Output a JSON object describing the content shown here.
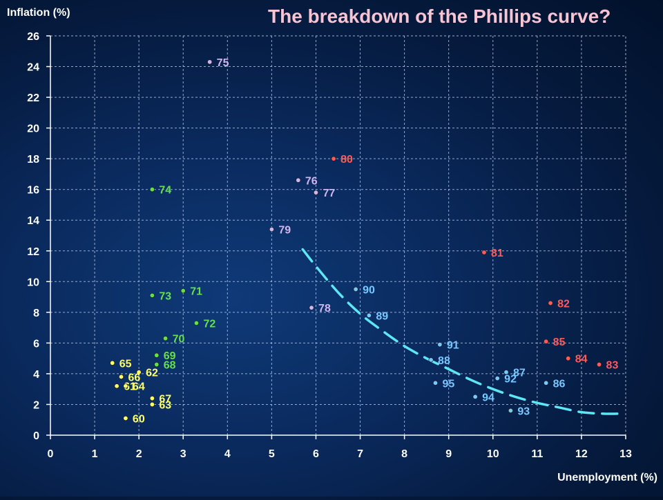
{
  "chart_data": {
    "type": "scatter",
    "title": "The breakdown of the Phillips curve?",
    "xlabel": "Unemployment (%)",
    "ylabel": "Inflation (%)",
    "xlim": [
      0,
      13
    ],
    "ylim": [
      0,
      26
    ],
    "xticks": [
      0,
      1,
      2,
      3,
      4,
      5,
      6,
      7,
      8,
      9,
      10,
      11,
      12,
      13
    ],
    "yticks": [
      0,
      2,
      4,
      6,
      8,
      10,
      12,
      14,
      16,
      18,
      20,
      22,
      24,
      26
    ],
    "grid": true,
    "colors": {
      "title": "#f6c4d2",
      "grid": "#c9d6ea",
      "curve": "#5fe6f5"
    },
    "series": [
      {
        "color": "#ffff66",
        "points": [
          {
            "label": "60",
            "x": 1.7,
            "y": 1.1
          },
          {
            "label": "61",
            "x": 1.5,
            "y": 3.2
          },
          {
            "label": "62",
            "x": 2.0,
            "y": 4.1
          },
          {
            "label": "63",
            "x": 2.3,
            "y": 2.0
          },
          {
            "label": "64",
            "x": 1.7,
            "y": 3.2
          },
          {
            "label": "65",
            "x": 1.4,
            "y": 4.7
          },
          {
            "label": "66",
            "x": 1.6,
            "y": 3.8
          },
          {
            "label": "67",
            "x": 2.3,
            "y": 2.4
          }
        ]
      },
      {
        "color": "#66e04a",
        "points": [
          {
            "label": "68",
            "x": 2.4,
            "y": 4.6
          },
          {
            "label": "69",
            "x": 2.4,
            "y": 5.2
          },
          {
            "label": "70",
            "x": 2.6,
            "y": 6.3
          },
          {
            "label": "71",
            "x": 3.0,
            "y": 9.4
          },
          {
            "label": "72",
            "x": 3.3,
            "y": 7.3
          },
          {
            "label": "73",
            "x": 2.3,
            "y": 9.1
          },
          {
            "label": "74",
            "x": 2.3,
            "y": 16.0
          }
        ]
      },
      {
        "color": "#d0b6f0",
        "points": [
          {
            "label": "75",
            "x": 3.6,
            "y": 24.3
          },
          {
            "label": "76",
            "x": 5.6,
            "y": 16.6
          },
          {
            "label": "77",
            "x": 6.0,
            "y": 15.8
          },
          {
            "label": "78",
            "x": 5.9,
            "y": 8.3
          },
          {
            "label": "79",
            "x": 5.0,
            "y": 13.4
          }
        ]
      },
      {
        "color": "#ff5a5a",
        "points": [
          {
            "label": "80",
            "x": 6.4,
            "y": 18.0
          },
          {
            "label": "81",
            "x": 9.8,
            "y": 11.9
          },
          {
            "label": "82",
            "x": 11.3,
            "y": 8.6
          },
          {
            "label": "83",
            "x": 12.4,
            "y": 4.6
          },
          {
            "label": "84",
            "x": 11.7,
            "y": 5.0
          },
          {
            "label": "85",
            "x": 11.2,
            "y": 6.1
          }
        ]
      },
      {
        "color": "#78c8ff",
        "points": [
          {
            "label": "86",
            "x": 11.2,
            "y": 3.4
          },
          {
            "label": "87",
            "x": 10.3,
            "y": 4.1
          },
          {
            "label": "88",
            "x": 8.6,
            "y": 4.9
          },
          {
            "label": "89",
            "x": 7.2,
            "y": 7.8
          },
          {
            "label": "90",
            "x": 6.9,
            "y": 9.5
          },
          {
            "label": "91",
            "x": 8.8,
            "y": 5.9
          },
          {
            "label": "92",
            "x": 10.1,
            "y": 3.7
          },
          {
            "label": "93",
            "x": 10.4,
            "y": 1.6
          },
          {
            "label": "94",
            "x": 9.6,
            "y": 2.5
          },
          {
            "label": "95",
            "x": 8.7,
            "y": 3.4
          }
        ]
      }
    ],
    "curve": {
      "style": "dashed",
      "points": [
        {
          "x": 5.7,
          "y": 12.1
        },
        {
          "x": 6.0,
          "y": 11.0
        },
        {
          "x": 6.5,
          "y": 9.3
        },
        {
          "x": 7.0,
          "y": 7.9
        },
        {
          "x": 7.5,
          "y": 6.8
        },
        {
          "x": 8.0,
          "y": 5.8
        },
        {
          "x": 8.5,
          "y": 5.0
        },
        {
          "x": 9.0,
          "y": 4.3
        },
        {
          "x": 9.5,
          "y": 3.6
        },
        {
          "x": 10.0,
          "y": 3.0
        },
        {
          "x": 10.5,
          "y": 2.5
        },
        {
          "x": 11.0,
          "y": 2.1
        },
        {
          "x": 11.5,
          "y": 1.8
        },
        {
          "x": 12.0,
          "y": 1.5
        },
        {
          "x": 12.5,
          "y": 1.4
        },
        {
          "x": 12.9,
          "y": 1.4
        }
      ]
    }
  }
}
